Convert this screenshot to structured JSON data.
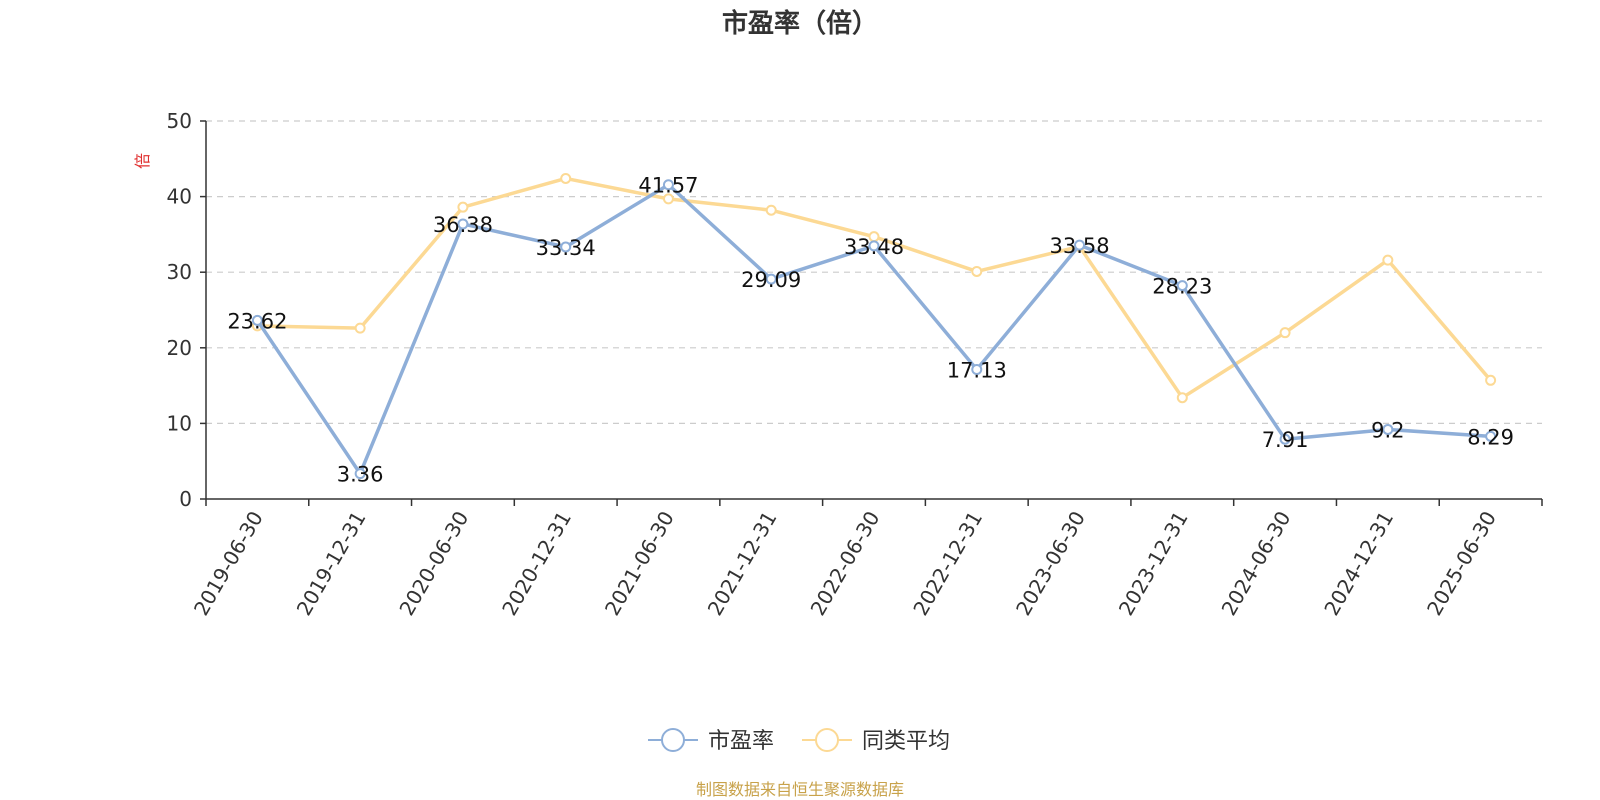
{
  "chart_data": {
    "type": "line",
    "title": "市盈率（倍）",
    "ylabel": "倍",
    "ylim": [
      0,
      50
    ],
    "yticks": [
      0,
      10,
      20,
      30,
      40,
      50
    ],
    "categories": [
      "2019-06-30",
      "2019-12-31",
      "2020-06-30",
      "2020-12-31",
      "2021-06-30",
      "2021-12-31",
      "2022-06-30",
      "2022-12-31",
      "2023-06-30",
      "2023-12-31",
      "2024-06-30",
      "2024-12-31",
      "2025-06-30"
    ],
    "series": [
      {
        "name": "市盈率",
        "color": "#8eaed8",
        "values": [
          23.62,
          3.36,
          36.38,
          33.34,
          41.57,
          29.09,
          33.48,
          17.13,
          33.58,
          28.23,
          7.91,
          9.2,
          8.29
        ],
        "labels": [
          "23.62",
          "3.36",
          "36.38",
          "33.34",
          "41.57",
          "29.09",
          "33.48",
          "17.13",
          "33.58",
          "28.23",
          "7.91",
          "9.2",
          "8.29"
        ]
      },
      {
        "name": "同类平均",
        "color": "#fcd994",
        "values": [
          22.9,
          22.6,
          38.6,
          42.4,
          39.7,
          38.2,
          34.7,
          30.1,
          33.4,
          13.4,
          22.0,
          31.6,
          15.7
        ]
      }
    ],
    "grid": "horizontal-dashed",
    "legend_position": "bottom-center"
  },
  "footer": {
    "source": "制图数据来自恒生聚源数据库"
  },
  "colors": {
    "axis": "#333333",
    "grid": "#cccccc",
    "unit": "#e03030",
    "source": "#c8a24a"
  }
}
